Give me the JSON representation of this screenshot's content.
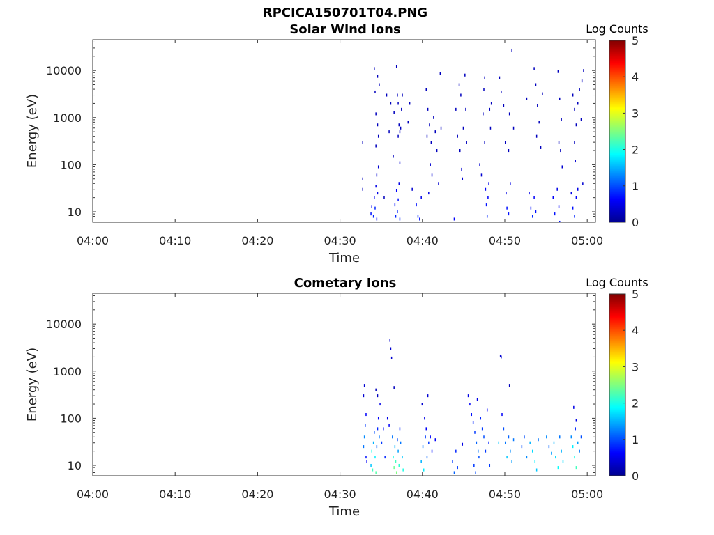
{
  "figure": {
    "title": "RPCICA150701T04.PNG"
  },
  "colorbar": {
    "label": "Log Counts",
    "ticks": [
      "0",
      "1",
      "2",
      "3",
      "4",
      "5"
    ],
    "range": [
      0,
      5
    ],
    "colormap": "jet"
  },
  "chart_data": [
    {
      "type": "heatmap",
      "title": "Solar Wind Ions",
      "xlabel": "Time",
      "ylabel": "Energy (eV)",
      "yscale": "log",
      "xlim": [
        "04:00",
        "05:01"
      ],
      "ylim": [
        6,
        45000
      ],
      "x_ticks": [
        "04:00",
        "04:10",
        "04:20",
        "04:30",
        "04:40",
        "04:50",
        "05:00"
      ],
      "y_ticks": [
        "10",
        "100",
        "1000",
        "10000"
      ],
      "grid": false,
      "cells": [
        [
          32.7,
          30,
          0.3
        ],
        [
          32.7,
          300,
          0.3
        ],
        [
          32.7,
          50,
          0.3
        ],
        [
          33.7,
          9,
          0.7
        ],
        [
          33.8,
          13,
          0.6
        ],
        [
          34.0,
          8,
          0.8
        ],
        [
          34.1,
          20,
          0.6
        ],
        [
          34.2,
          12,
          0.8
        ],
        [
          34.3,
          35,
          0.5
        ],
        [
          34.4,
          7,
          0.7
        ],
        [
          34.5,
          25,
          0.5
        ],
        [
          34.1,
          11000,
          0.3
        ],
        [
          34.2,
          3500,
          0.3
        ],
        [
          34.3,
          1200,
          0.3
        ],
        [
          34.5,
          700,
          0.3
        ],
        [
          34.6,
          400,
          0.3
        ],
        [
          34.3,
          250,
          0.3
        ],
        [
          34.7,
          5000,
          0.3
        ],
        [
          34.5,
          7500,
          0.3
        ],
        [
          34.4,
          60,
          0.4
        ],
        [
          34.6,
          90,
          0.4
        ],
        [
          35.3,
          20,
          0.3
        ],
        [
          35.6,
          3000,
          0.3
        ],
        [
          35.9,
          500,
          0.3
        ],
        [
          36.1,
          2000,
          0.3
        ],
        [
          36.4,
          150,
          0.3
        ],
        [
          36.5,
          1300,
          0.3
        ],
        [
          36.6,
          14,
          0.7
        ],
        [
          36.7,
          8,
          0.8
        ],
        [
          36.8,
          28,
          0.6
        ],
        [
          36.9,
          10,
          0.8
        ],
        [
          37.0,
          18,
          0.7
        ],
        [
          37.1,
          40,
          0.5
        ],
        [
          37.2,
          7,
          0.8
        ],
        [
          36.8,
          12000,
          0.3
        ],
        [
          36.9,
          3000,
          0.3
        ],
        [
          37.0,
          2000,
          0.3
        ],
        [
          37.1,
          700,
          0.3
        ],
        [
          37.2,
          500,
          0.3
        ],
        [
          37.0,
          400,
          0.3
        ],
        [
          37.3,
          600,
          0.3
        ],
        [
          37.4,
          1500,
          0.3
        ],
        [
          37.2,
          110,
          0.4
        ],
        [
          37.5,
          3000,
          0.3
        ],
        [
          38.2,
          800,
          0.3
        ],
        [
          38.4,
          2000,
          0.3
        ],
        [
          38.7,
          30,
          0.4
        ],
        [
          39.2,
          14,
          0.7
        ],
        [
          39.4,
          8,
          0.8
        ],
        [
          39.6,
          7,
          0.7
        ],
        [
          39.8,
          20,
          0.5
        ],
        [
          40.4,
          4000,
          0.3
        ],
        [
          40.6,
          1500,
          0.3
        ],
        [
          40.8,
          700,
          0.3
        ],
        [
          41.0,
          300,
          0.3
        ],
        [
          40.5,
          400,
          0.3
        ],
        [
          40.9,
          100,
          0.4
        ],
        [
          41.1,
          60,
          0.4
        ],
        [
          40.7,
          25,
          0.5
        ],
        [
          41.3,
          1000,
          0.3
        ],
        [
          41.5,
          500,
          0.3
        ],
        [
          41.7,
          200,
          0.3
        ],
        [
          41.9,
          40,
          0.4
        ],
        [
          42.1,
          8500,
          0.3
        ],
        [
          42.2,
          600,
          0.3
        ],
        [
          43.8,
          7,
          0.6
        ],
        [
          44.0,
          1500,
          0.3
        ],
        [
          44.2,
          400,
          0.3
        ],
        [
          44.4,
          5000,
          0.3
        ],
        [
          44.5,
          200,
          0.3
        ],
        [
          44.6,
          3000,
          0.3
        ],
        [
          44.7,
          80,
          0.4
        ],
        [
          44.8,
          50,
          0.4
        ],
        [
          44.9,
          600,
          0.3
        ],
        [
          45.1,
          8000,
          0.3
        ],
        [
          45.2,
          1500,
          0.3
        ],
        [
          45.3,
          300,
          0.3
        ],
        [
          46.9,
          100,
          0.4
        ],
        [
          47.1,
          60,
          0.4
        ],
        [
          47.3,
          1200,
          0.3
        ],
        [
          47.4,
          4000,
          0.3
        ],
        [
          47.5,
          7000,
          0.3
        ],
        [
          47.6,
          30,
          0.6
        ],
        [
          47.7,
          14,
          0.7
        ],
        [
          47.8,
          8,
          0.8
        ],
        [
          47.9,
          20,
          0.6
        ],
        [
          48.0,
          40,
          0.5
        ],
        [
          48.1,
          1500,
          0.3
        ],
        [
          48.2,
          600,
          0.3
        ],
        [
          47.5,
          300,
          0.3
        ],
        [
          48.3,
          2000,
          0.3
        ],
        [
          49.3,
          7000,
          0.3
        ],
        [
          49.5,
          3500,
          0.3
        ],
        [
          49.8,
          1800,
          0.3
        ],
        [
          50.0,
          300,
          0.3
        ],
        [
          50.1,
          25,
          0.5
        ],
        [
          50.2,
          12,
          0.7
        ],
        [
          50.4,
          9,
          0.7
        ],
        [
          50.6,
          40,
          0.5
        ],
        [
          50.5,
          1200,
          0.3
        ],
        [
          50.8,
          27000,
          0.3
        ],
        [
          50.4,
          200,
          0.3
        ],
        [
          51.0,
          600,
          0.3
        ],
        [
          52.6,
          2500,
          0.3
        ],
        [
          52.9,
          25,
          0.5
        ],
        [
          53.1,
          12,
          0.7
        ],
        [
          53.3,
          8,
          0.8
        ],
        [
          53.5,
          20,
          0.6
        ],
        [
          53.7,
          10,
          0.7
        ],
        [
          53.5,
          11000,
          0.3
        ],
        [
          53.7,
          5000,
          0.3
        ],
        [
          53.9,
          1800,
          0.3
        ],
        [
          54.1,
          800,
          0.3
        ],
        [
          53.8,
          400,
          0.3
        ],
        [
          54.3,
          230,
          0.3
        ],
        [
          54.5,
          3200,
          0.3
        ],
        [
          55.8,
          20,
          0.6
        ],
        [
          56.0,
          9,
          0.7
        ],
        [
          56.3,
          30,
          0.5
        ],
        [
          56.5,
          13,
          0.6
        ],
        [
          56.6,
          6,
          0.7
        ],
        [
          56.4,
          9500,
          0.3
        ],
        [
          56.6,
          2500,
          0.3
        ],
        [
          56.8,
          900,
          0.3
        ],
        [
          56.5,
          300,
          0.3
        ],
        [
          56.7,
          200,
          0.3
        ],
        [
          56.9,
          90,
          0.4
        ],
        [
          58.0,
          25,
          0.5
        ],
        [
          58.2,
          12,
          0.7
        ],
        [
          58.4,
          8,
          0.8
        ],
        [
          58.6,
          20,
          0.6
        ],
        [
          58.8,
          30,
          0.5
        ],
        [
          58.2,
          3000,
          0.3
        ],
        [
          58.4,
          1500,
          0.3
        ],
        [
          58.6,
          700,
          0.3
        ],
        [
          58.4,
          300,
          0.3
        ],
        [
          58.8,
          2000,
          0.3
        ],
        [
          59.0,
          4000,
          0.3
        ],
        [
          59.2,
          900,
          0.3
        ],
        [
          58.5,
          120,
          0.4
        ],
        [
          59.3,
          6000,
          0.3
        ],
        [
          59.5,
          10000,
          0.3
        ],
        [
          59.4,
          40,
          0.4
        ]
      ]
    },
    {
      "type": "heatmap",
      "title": "Cometary Ions",
      "xlabel": "Time",
      "ylabel": "Energy (eV)",
      "yscale": "log",
      "xlim": [
        "04:00",
        "05:01"
      ],
      "ylim": [
        6,
        45000
      ],
      "x_ticks": [
        "04:00",
        "04:10",
        "04:20",
        "04:30",
        "04:40",
        "04:50",
        "05:00"
      ],
      "y_ticks": [
        "10",
        "100",
        "1000",
        "10000"
      ],
      "grid": false,
      "cells": [
        [
          32.8,
          25,
          1.2
        ],
        [
          32.9,
          40,
          1.3
        ],
        [
          33.0,
          70,
          0.9
        ],
        [
          33.1,
          120,
          0.6
        ],
        [
          32.8,
          300,
          0.4
        ],
        [
          32.9,
          500,
          0.4
        ],
        [
          33.1,
          15,
          0.7
        ],
        [
          33.2,
          12,
          0.6
        ],
        [
          33.7,
          10,
          1.6
        ],
        [
          33.8,
          20,
          2.0
        ],
        [
          33.9,
          8,
          2.2
        ],
        [
          34.0,
          30,
          1.5
        ],
        [
          34.1,
          50,
          1.0
        ],
        [
          34.2,
          15,
          1.8
        ],
        [
          34.3,
          7,
          2.3
        ],
        [
          34.4,
          25,
          1.1
        ],
        [
          34.5,
          60,
          0.8
        ],
        [
          34.6,
          100,
          0.6
        ],
        [
          34.7,
          40,
          1.2
        ],
        [
          34.8,
          200,
          0.5
        ],
        [
          34.3,
          400,
          0.3
        ],
        [
          34.5,
          300,
          0.3
        ],
        [
          35.0,
          30,
          0.9
        ],
        [
          35.2,
          60,
          0.7
        ],
        [
          35.4,
          15,
          0.8
        ],
        [
          35.7,
          100,
          0.5
        ],
        [
          35.9,
          70,
          0.6
        ],
        [
          36.0,
          4500,
          0.4
        ],
        [
          36.1,
          3000,
          0.4
        ],
        [
          36.2,
          1900,
          0.4
        ],
        [
          36.3,
          40,
          1.2
        ],
        [
          36.4,
          15,
          2.0
        ],
        [
          36.5,
          9,
          2.4
        ],
        [
          36.6,
          25,
          1.5
        ],
        [
          36.7,
          12,
          2.2
        ],
        [
          36.8,
          7,
          2.5
        ],
        [
          36.9,
          35,
          1.0
        ],
        [
          37.0,
          20,
          1.4
        ],
        [
          37.1,
          10,
          2.1
        ],
        [
          37.3,
          30,
          1.2
        ],
        [
          37.5,
          15,
          1.6
        ],
        [
          37.6,
          8,
          2.0
        ],
        [
          36.5,
          450,
          0.3
        ],
        [
          37.2,
          60,
          0.8
        ],
        [
          39.8,
          12,
          1.5
        ],
        [
          40.0,
          25,
          1.2
        ],
        [
          40.1,
          8,
          1.8
        ],
        [
          40.3,
          40,
          0.9
        ],
        [
          40.5,
          15,
          1.1
        ],
        [
          40.7,
          30,
          0.9
        ],
        [
          39.9,
          200,
          0.4
        ],
        [
          40.2,
          100,
          0.5
        ],
        [
          40.4,
          60,
          0.6
        ],
        [
          40.6,
          300,
          0.4
        ],
        [
          40.9,
          40,
          0.6
        ],
        [
          41.1,
          20,
          0.7
        ],
        [
          41.5,
          35,
          0.6
        ],
        [
          43.6,
          12,
          0.9
        ],
        [
          43.8,
          7,
          1.1
        ],
        [
          44.0,
          20,
          0.8
        ],
        [
          44.2,
          9,
          0.9
        ],
        [
          44.8,
          28,
          0.5
        ],
        [
          45.5,
          300,
          0.5
        ],
        [
          45.7,
          200,
          0.6
        ],
        [
          45.9,
          120,
          0.7
        ],
        [
          46.1,
          80,
          0.8
        ],
        [
          46.3,
          50,
          0.9
        ],
        [
          46.5,
          30,
          1.1
        ],
        [
          46.7,
          20,
          1.2
        ],
        [
          46.2,
          10,
          0.9
        ],
        [
          46.4,
          7,
          1.0
        ],
        [
          46.8,
          15,
          1.0
        ],
        [
          47.0,
          100,
          0.8
        ],
        [
          47.2,
          60,
          0.9
        ],
        [
          47.4,
          40,
          1.0
        ],
        [
          46.6,
          250,
          0.5
        ],
        [
          47.6,
          20,
          0.9
        ],
        [
          47.8,
          150,
          0.6
        ],
        [
          48.0,
          30,
          0.8
        ],
        [
          48.1,
          10,
          0.9
        ],
        [
          49.4,
          2100,
          0.4
        ],
        [
          49.5,
          2000,
          0.4
        ],
        [
          49.6,
          120,
          0.6
        ],
        [
          49.8,
          60,
          1.0
        ],
        [
          50.0,
          30,
          1.2
        ],
        [
          50.2,
          15,
          1.6
        ],
        [
          50.4,
          40,
          1.1
        ],
        [
          50.6,
          20,
          1.3
        ],
        [
          50.8,
          12,
          1.4
        ],
        [
          51.0,
          35,
          1.2
        ],
        [
          50.5,
          500,
          0.3
        ],
        [
          49.2,
          30,
          1.6
        ],
        [
          52.0,
          25,
          1.0
        ],
        [
          52.3,
          40,
          1.0
        ],
        [
          52.6,
          15,
          1.3
        ],
        [
          53.0,
          30,
          1.5
        ],
        [
          53.3,
          20,
          1.7
        ],
        [
          53.6,
          12,
          1.8
        ],
        [
          53.8,
          8,
          1.6
        ],
        [
          54.0,
          35,
          1.2
        ],
        [
          55.0,
          40,
          1.3
        ],
        [
          55.3,
          25,
          1.1
        ],
        [
          55.6,
          18,
          1.4
        ],
        [
          55.9,
          30,
          1.5
        ],
        [
          56.1,
          15,
          1.7
        ],
        [
          56.4,
          9,
          1.9
        ],
        [
          56.6,
          40,
          1.2
        ],
        [
          56.8,
          20,
          1.5
        ],
        [
          57.0,
          12,
          1.7
        ],
        [
          58.0,
          40,
          1.3
        ],
        [
          58.2,
          25,
          1.8
        ],
        [
          58.4,
          15,
          2.0
        ],
        [
          58.6,
          9,
          2.2
        ],
        [
          58.8,
          30,
          1.4
        ],
        [
          59.0,
          20,
          1.2
        ],
        [
          59.2,
          40,
          1.0
        ],
        [
          58.5,
          60,
          0.8
        ],
        [
          58.3,
          170,
          0.5
        ],
        [
          58.6,
          90,
          0.5
        ]
      ]
    }
  ]
}
